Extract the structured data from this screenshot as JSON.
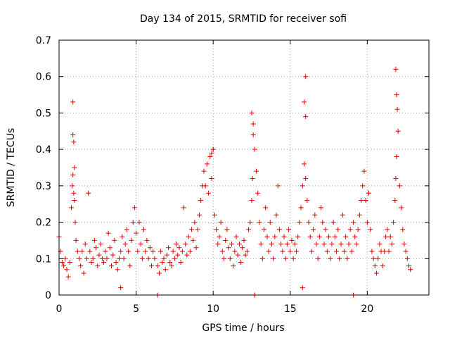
{
  "chart_data": {
    "type": "scatter",
    "title": "Day 134 of 2015, SRMTID for receiver sofi",
    "xlabel": "GPS time / hours",
    "ylabel": "SRMTID / TECUs",
    "xlim": [
      0,
      24
    ],
    "ylim": [
      0,
      0.7
    ],
    "xticks": [
      0,
      5,
      10,
      15,
      20
    ],
    "yticks": [
      0,
      0.1,
      0.2,
      0.3,
      0.4,
      0.5,
      0.6,
      0.7
    ],
    "xtick_labels": [
      "0",
      "5",
      "10",
      "15",
      "20"
    ],
    "ytick_labels": [
      "0",
      "0.1",
      "0.2",
      "0.3",
      "0.4",
      "0.5",
      "0.6",
      "0.7"
    ],
    "grid": true,
    "marker": "+",
    "color": "#e00000",
    "series": [
      {
        "name": "SRMTID",
        "x": [
          0.0,
          0.1,
          0.2,
          0.3,
          0.4,
          0.5,
          0.6,
          0.7,
          0.8,
          0.85,
          0.9,
          0.95,
          1.0,
          1.05,
          1.1,
          1.2,
          1.3,
          1.4,
          1.5,
          1.6,
          1.7,
          1.8,
          1.9,
          2.0,
          2.1,
          2.2,
          2.3,
          2.4,
          2.5,
          2.6,
          2.7,
          2.8,
          2.9,
          3.0,
          3.1,
          3.2,
          3.3,
          3.4,
          3.5,
          3.6,
          3.7,
          3.8,
          3.9,
          4.0,
          4.1,
          4.2,
          4.3,
          4.4,
          4.5,
          4.6,
          4.7,
          4.8,
          4.9,
          5.0,
          5.1,
          5.2,
          5.3,
          5.4,
          5.5,
          5.6,
          5.7,
          5.8,
          5.9,
          6.0,
          6.1,
          6.2,
          6.4,
          6.5,
          6.6,
          6.7,
          6.8,
          6.9,
          7.0,
          7.1,
          7.2,
          7.3,
          7.4,
          7.5,
          7.6,
          7.7,
          7.8,
          7.9,
          8.0,
          8.1,
          8.2,
          8.3,
          8.4,
          8.5,
          8.6,
          8.7,
          8.8,
          8.9,
          9.0,
          9.1,
          9.2,
          9.3,
          9.4,
          9.5,
          9.6,
          9.7,
          9.8,
          9.9,
          10.0,
          10.1,
          10.2,
          10.3,
          10.4,
          10.5,
          10.6,
          10.7,
          10.8,
          10.9,
          11.0,
          11.1,
          11.2,
          11.3,
          11.4,
          11.5,
          11.6,
          11.7,
          11.8,
          11.9,
          12.0,
          12.1,
          12.2,
          12.3,
          12.4,
          12.5,
          12.55,
          12.6,
          12.7,
          12.8,
          12.9,
          13.0,
          13.1,
          13.2,
          13.3,
          13.4,
          13.5,
          13.6,
          13.7,
          13.8,
          13.9,
          14.0,
          14.1,
          14.2,
          14.3,
          14.4,
          14.5,
          14.6,
          14.7,
          14.8,
          14.9,
          15.0,
          15.1,
          15.2,
          15.3,
          15.4,
          15.5,
          15.6,
          15.7,
          15.8,
          15.9,
          16.0,
          16.1,
          16.2,
          16.3,
          16.4,
          16.5,
          16.6,
          16.7,
          16.8,
          16.9,
          17.0,
          17.1,
          17.2,
          17.3,
          17.4,
          17.5,
          17.6,
          17.7,
          17.8,
          17.9,
          18.0,
          18.1,
          18.2,
          18.3,
          18.4,
          18.5,
          18.6,
          18.7,
          18.8,
          18.9,
          19.0,
          19.1,
          19.2,
          19.3,
          19.4,
          19.5,
          19.6,
          19.7,
          19.8,
          19.9,
          20.0,
          20.1,
          20.2,
          20.3,
          20.4,
          20.5,
          20.6,
          20.7,
          20.8,
          20.9,
          21.0,
          21.1,
          21.2,
          21.3,
          21.4,
          21.5,
          21.6,
          21.7,
          21.8,
          21.85,
          21.9,
          22.0,
          22.1,
          22.2,
          22.3,
          22.4,
          22.5,
          22.6,
          22.7,
          22.8,
          0.9,
          0.9,
          0.95,
          1.0,
          9.9,
          10.0,
          12.5,
          12.6,
          15.9,
          16.0,
          16.0,
          21.85,
          21.9,
          21.95,
          4.0,
          15.8,
          6.4,
          12.7,
          19.1
        ],
        "y": [
          0.16,
          0.12,
          0.09,
          0.08,
          0.1,
          0.07,
          0.05,
          0.09,
          0.24,
          0.3,
          0.33,
          0.28,
          0.26,
          0.2,
          0.15,
          0.12,
          0.1,
          0.08,
          0.12,
          0.06,
          0.14,
          0.1,
          0.28,
          0.12,
          0.09,
          0.1,
          0.15,
          0.13,
          0.08,
          0.11,
          0.14,
          0.1,
          0.09,
          0.12,
          0.1,
          0.17,
          0.13,
          0.08,
          0.11,
          0.15,
          0.09,
          0.07,
          0.1,
          0.12,
          0.16,
          0.1,
          0.14,
          0.18,
          0.12,
          0.08,
          0.15,
          0.2,
          0.24,
          0.17,
          0.12,
          0.2,
          0.14,
          0.1,
          0.18,
          0.12,
          0.15,
          0.1,
          0.13,
          0.08,
          0.12,
          0.1,
          0.08,
          0.06,
          0.12,
          0.09,
          0.1,
          0.07,
          0.11,
          0.13,
          0.09,
          0.08,
          0.12,
          0.1,
          0.14,
          0.11,
          0.13,
          0.09,
          0.12,
          0.24,
          0.14,
          0.11,
          0.16,
          0.12,
          0.18,
          0.15,
          0.2,
          0.13,
          0.18,
          0.22,
          0.26,
          0.3,
          0.34,
          0.3,
          0.36,
          0.28,
          0.38,
          0.32,
          0.4,
          0.22,
          0.18,
          0.14,
          0.16,
          0.2,
          0.12,
          0.1,
          0.15,
          0.18,
          0.13,
          0.1,
          0.14,
          0.08,
          0.12,
          0.16,
          0.11,
          0.14,
          0.09,
          0.13,
          0.15,
          0.11,
          0.12,
          0.18,
          0.2,
          0.26,
          0.32,
          0.44,
          0.4,
          0.34,
          0.28,
          0.2,
          0.14,
          0.1,
          0.18,
          0.24,
          0.16,
          0.12,
          0.2,
          0.14,
          0.1,
          0.16,
          0.22,
          0.3,
          0.18,
          0.14,
          0.12,
          0.16,
          0.1,
          0.14,
          0.18,
          0.12,
          0.15,
          0.1,
          0.14,
          0.12,
          0.16,
          0.2,
          0.24,
          0.3,
          0.36,
          0.32,
          0.26,
          0.2,
          0.16,
          0.12,
          0.18,
          0.22,
          0.14,
          0.1,
          0.16,
          0.24,
          0.2,
          0.14,
          0.18,
          0.12,
          0.16,
          0.1,
          0.14,
          0.2,
          0.16,
          0.12,
          0.18,
          0.1,
          0.14,
          0.22,
          0.12,
          0.16,
          0.1,
          0.14,
          0.18,
          0.12,
          0.2,
          0.16,
          0.14,
          0.18,
          0.22,
          0.26,
          0.3,
          0.34,
          0.26,
          0.2,
          0.28,
          0.18,
          0.12,
          0.1,
          0.08,
          0.06,
          0.1,
          0.14,
          0.12,
          0.08,
          0.12,
          0.16,
          0.18,
          0.12,
          0.16,
          0.14,
          0.2,
          0.26,
          0.32,
          0.38,
          0.45,
          0.3,
          0.24,
          0.18,
          0.14,
          0.12,
          0.1,
          0.08,
          0.07,
          0.53,
          0.44,
          0.42,
          0.35,
          0.39,
          0.4,
          0.5,
          0.47,
          0.53,
          0.6,
          0.49,
          0.62,
          0.55,
          0.51,
          0.02,
          0.02,
          0.0,
          0.0,
          0.0
        ]
      }
    ]
  }
}
